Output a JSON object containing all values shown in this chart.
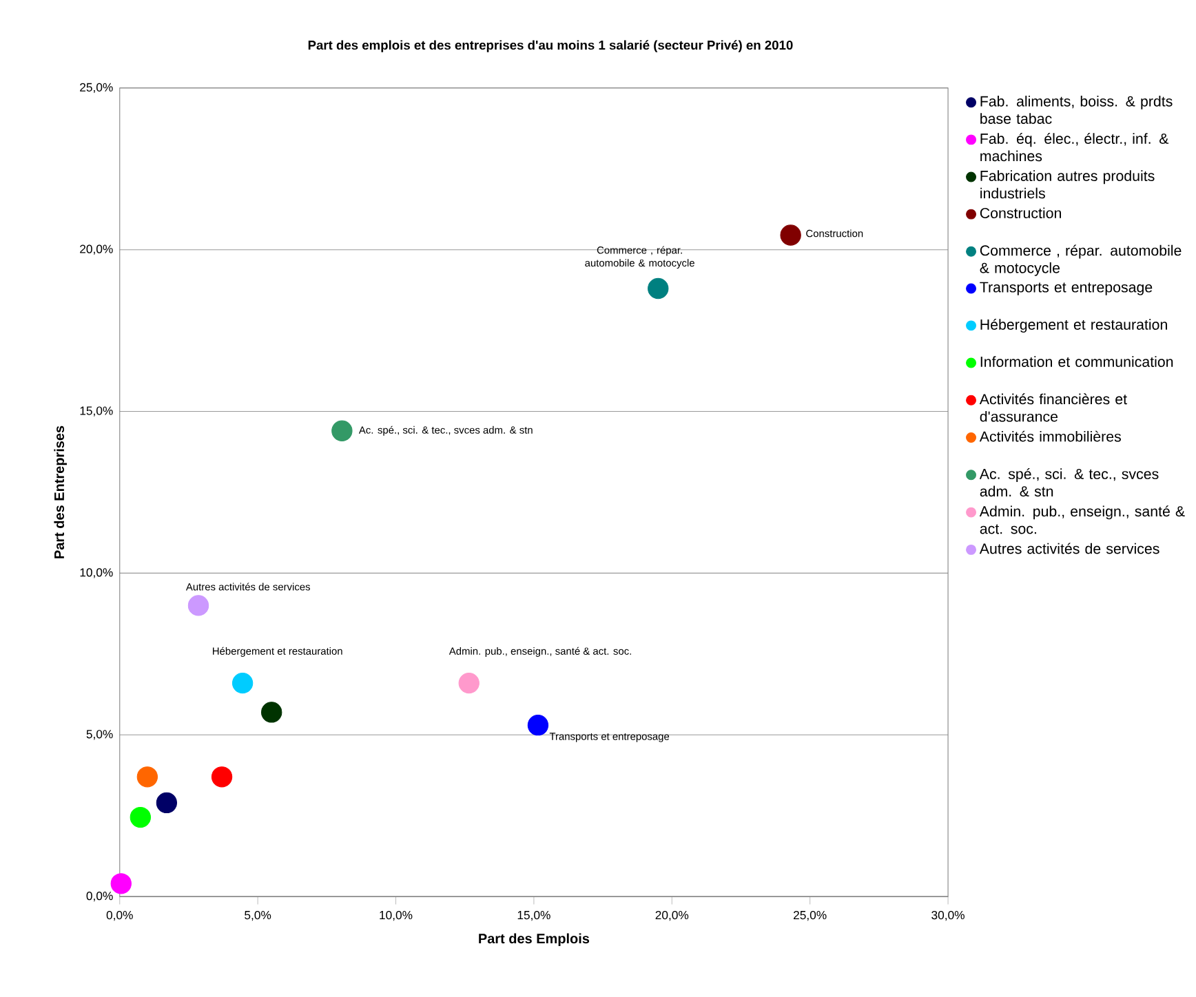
{
  "chart_data": {
    "type": "scatter",
    "title": "Part des emplois et des entreprises d'au moins 1 salarié (secteur Privé) en 2010",
    "xlabel": "Part des Emplois",
    "ylabel": "Part des Entreprises",
    "xlim": [
      0,
      30
    ],
    "ylim": [
      0,
      25
    ],
    "xticks": [
      {
        "value": 0,
        "label": "0,0%"
      },
      {
        "value": 5,
        "label": "5,0%"
      },
      {
        "value": 10,
        "label": "10,0%"
      },
      {
        "value": 15,
        "label": "15,0%"
      },
      {
        "value": 20,
        "label": "20,0%"
      },
      {
        "value": 25,
        "label": "25,0%"
      },
      {
        "value": 30,
        "label": "30,0%"
      }
    ],
    "yticks": [
      {
        "value": 0,
        "label": "0,0%"
      },
      {
        "value": 5,
        "label": "5,0%"
      },
      {
        "value": 10,
        "label": "10,0%"
      },
      {
        "value": 15,
        "label": "15,0%"
      },
      {
        "value": 20,
        "label": "20,0%"
      },
      {
        "value": 25,
        "label": "25,0%"
      }
    ],
    "grid": "y",
    "legend": "right",
    "series": [
      {
        "name": "Fab. aliments, boiss. & prdts base tabac",
        "color": "#000066",
        "x": [
          1.7
        ],
        "values": [
          2.9
        ]
      },
      {
        "name": "Fab. éq. élec., électr., inf. & machines",
        "color": "#ff00ff",
        "x": [
          0.05
        ],
        "values": [
          0.4
        ]
      },
      {
        "name": "Fabrication autres produits industriels",
        "color": "#003300",
        "x": [
          5.5
        ],
        "values": [
          5.7
        ]
      },
      {
        "name": "Construction",
        "color": "#800000",
        "x": [
          24.3
        ],
        "values": [
          20.45
        ]
      },
      {
        "name": "Commerce , répar. automobile & motocycle",
        "color": "#008080",
        "x": [
          19.5
        ],
        "values": [
          18.8
        ]
      },
      {
        "name": "Transports et entreposage",
        "color": "#0000ff",
        "x": [
          15.15
        ],
        "values": [
          5.3
        ]
      },
      {
        "name": "Hébergement et restauration",
        "color": "#00ccff",
        "x": [
          4.45
        ],
        "values": [
          6.6
        ]
      },
      {
        "name": "Information et communication",
        "color": "#00ff00",
        "x": [
          0.75
        ],
        "values": [
          2.45
        ]
      },
      {
        "name": "Activités financières et d'assurance",
        "color": "#ff0000",
        "x": [
          3.7
        ],
        "values": [
          3.7
        ]
      },
      {
        "name": "Activités immobilières",
        "color": "#ff6600",
        "x": [
          1.0
        ],
        "values": [
          3.7
        ]
      },
      {
        "name": "Ac. spé., sci. & tec., svces adm. & stn",
        "color": "#339966",
        "x": [
          8.05
        ],
        "values": [
          14.4
        ]
      },
      {
        "name": "Admin. pub., enseign., santé & act. soc.",
        "color": "#ff99cc",
        "x": [
          12.65
        ],
        "values": [
          6.6
        ]
      },
      {
        "name": "Autres activités de services",
        "color": "#cc99ff",
        "x": [
          2.85
        ],
        "values": [
          9.0
        ]
      }
    ],
    "annotations": [
      {
        "text": "Commerce , répar. automobile & motocycle",
        "x": 19.5,
        "y": 18.8
      },
      {
        "text": "Construction",
        "x": 24.3,
        "y": 20.45
      },
      {
        "text": "Ac. spé., sci. & tec., svces adm. & stn",
        "x": 8.05,
        "y": 14.4
      },
      {
        "text": "Autres activités de services",
        "x": 2.85,
        "y": 9.0
      },
      {
        "text": "Hébergement et restauration",
        "x": 4.45,
        "y": 6.6
      },
      {
        "text": "Admin. pub., enseign., santé & act. soc.",
        "x": 12.65,
        "y": 6.6
      },
      {
        "text": "Transports et entreposage",
        "x": 15.15,
        "y": 5.3
      }
    ]
  }
}
